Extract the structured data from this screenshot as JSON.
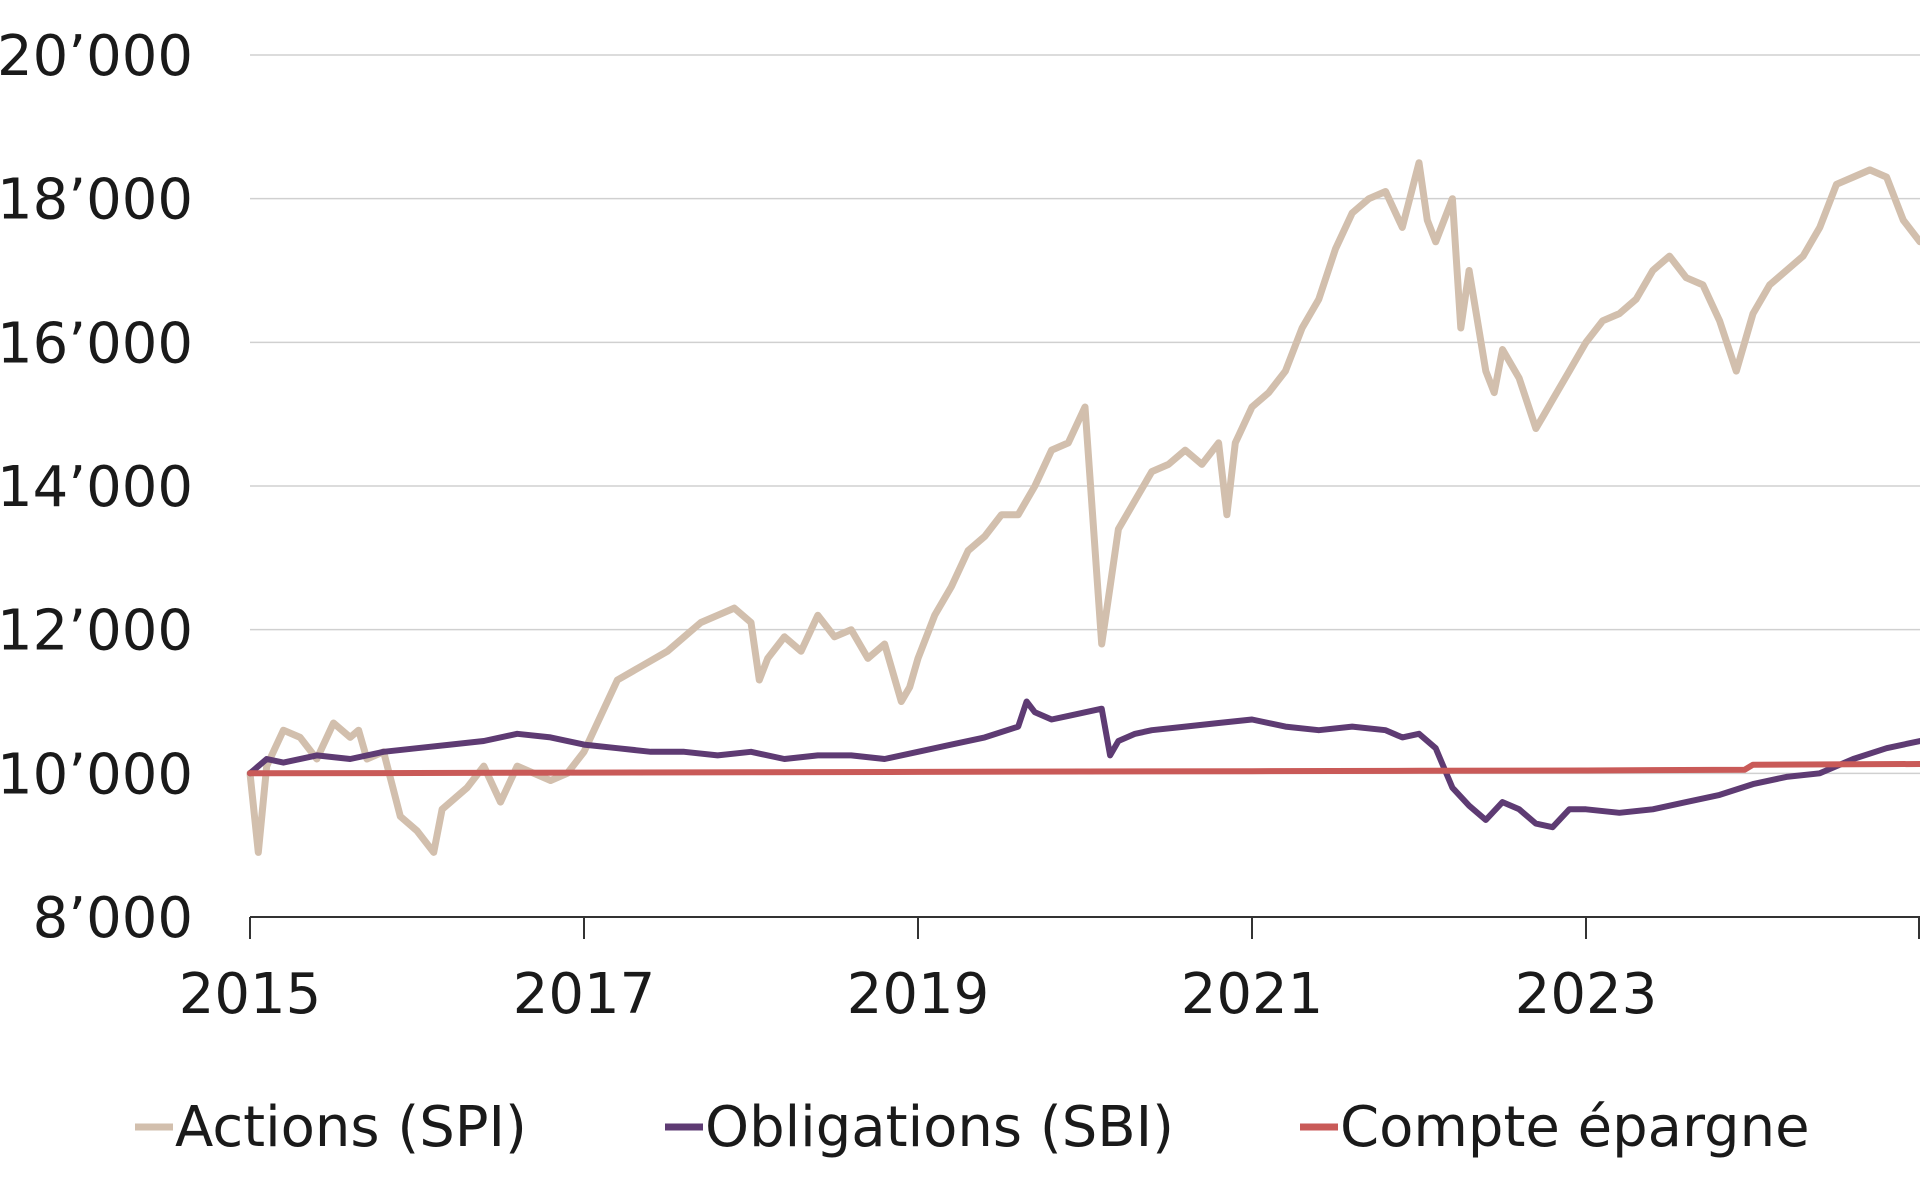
{
  "chart_data": {
    "type": "line",
    "title": "",
    "xlabel": "",
    "ylabel": "",
    "xlim": [
      2015,
      2025
    ],
    "ylim": [
      8000,
      20000
    ],
    "y_ticks": [
      {
        "value": 8000,
        "label": "8’000"
      },
      {
        "value": 10000,
        "label": "10’000"
      },
      {
        "value": 12000,
        "label": "12’000"
      },
      {
        "value": 14000,
        "label": "14’000"
      },
      {
        "value": 16000,
        "label": "16’000"
      },
      {
        "value": 18000,
        "label": "18’000"
      },
      {
        "value": 20000,
        "label": "20’000"
      }
    ],
    "x_ticks": [
      {
        "value": 2015,
        "label": "2015"
      },
      {
        "value": 2017,
        "label": "2017"
      },
      {
        "value": 2019,
        "label": "2019"
      },
      {
        "value": 2021,
        "label": "2021"
      },
      {
        "value": 2023,
        "label": "2023"
      }
    ],
    "grid": "horizontal",
    "legend_position": "bottom",
    "series": [
      {
        "name": "Actions (SPI)",
        "color": "#d2bfad",
        "x": [
          2015.0,
          2015.05,
          2015.1,
          2015.2,
          2015.3,
          2015.4,
          2015.5,
          2015.6,
          2015.65,
          2015.7,
          2015.8,
          2015.9,
          2016.0,
          2016.1,
          2016.15,
          2016.3,
          2016.4,
          2016.5,
          2016.6,
          2016.7,
          2016.8,
          2016.9,
          2017.0,
          2017.1,
          2017.2,
          2017.35,
          2017.5,
          2017.6,
          2017.7,
          2017.8,
          2017.9,
          2018.0,
          2018.05,
          2018.1,
          2018.2,
          2018.3,
          2018.4,
          2018.5,
          2018.6,
          2018.7,
          2018.8,
          2018.9,
          2018.95,
          2019.0,
          2019.1,
          2019.2,
          2019.3,
          2019.4,
          2019.5,
          2019.6,
          2019.7,
          2019.8,
          2019.9,
          2020.0,
          2020.1,
          2020.15,
          2020.2,
          2020.3,
          2020.4,
          2020.5,
          2020.6,
          2020.7,
          2020.8,
          2020.85,
          2020.9,
          2021.0,
          2021.1,
          2021.2,
          2021.3,
          2021.4,
          2021.5,
          2021.6,
          2021.7,
          2021.8,
          2021.9,
          2022.0,
          2022.05,
          2022.1,
          2022.2,
          2022.25,
          2022.3,
          2022.4,
          2022.45,
          2022.5,
          2022.6,
          2022.7,
          2022.75,
          2022.8,
          2022.9,
          2023.0,
          2023.1,
          2023.2,
          2023.3,
          2023.4,
          2023.5,
          2023.6,
          2023.7,
          2023.8,
          2023.9,
          2024.0,
          2024.1,
          2024.2,
          2024.3,
          2024.4,
          2024.5,
          2024.6,
          2024.7,
          2024.8,
          2024.9,
          2025.0
        ],
        "values": [
          10000,
          8900,
          10100,
          10600,
          10500,
          10200,
          10700,
          10500,
          10600,
          10200,
          10300,
          9400,
          9200,
          8900,
          9500,
          9800,
          10100,
          9600,
          10100,
          10000,
          9900,
          10000,
          10300,
          10800,
          11300,
          11500,
          11700,
          11900,
          12100,
          12200,
          12300,
          12100,
          11300,
          11600,
          11900,
          11700,
          12200,
          11900,
          12000,
          11600,
          11800,
          11000,
          11200,
          11600,
          12200,
          12600,
          13100,
          13300,
          13600,
          13600,
          14000,
          14500,
          14600,
          15100,
          11800,
          12600,
          13400,
          13800,
          14200,
          14300,
          14500,
          14300,
          14600,
          13600,
          14600,
          15100,
          15300,
          15600,
          16200,
          16600,
          17300,
          17800,
          18000,
          18100,
          17600,
          18500,
          17700,
          17400,
          18000,
          16200,
          17000,
          15600,
          15300,
          15900,
          15500,
          14800,
          15000,
          15200,
          15600,
          16000,
          16300,
          16400,
          16600,
          17000,
          17200,
          16900,
          16800,
          16300,
          15600,
          16400,
          16800,
          17000,
          17200,
          17600,
          18200,
          18300,
          18400,
          18300,
          17700,
          17400
        ]
      },
      {
        "name": "Obligations (SBI)",
        "color": "#5e3b73",
        "x": [
          2015.0,
          2015.1,
          2015.2,
          2015.4,
          2015.6,
          2015.8,
          2016.0,
          2016.2,
          2016.4,
          2016.6,
          2016.8,
          2017.0,
          2017.2,
          2017.4,
          2017.6,
          2017.8,
          2018.0,
          2018.2,
          2018.4,
          2018.6,
          2018.8,
          2019.0,
          2019.2,
          2019.4,
          2019.6,
          2019.65,
          2019.7,
          2019.8,
          2019.9,
          2020.0,
          2020.1,
          2020.15,
          2020.2,
          2020.3,
          2020.4,
          2020.6,
          2020.8,
          2021.0,
          2021.2,
          2021.4,
          2021.6,
          2021.8,
          2021.9,
          2022.0,
          2022.1,
          2022.2,
          2022.3,
          2022.4,
          2022.5,
          2022.6,
          2022.7,
          2022.8,
          2022.9,
          2023.0,
          2023.2,
          2023.4,
          2023.6,
          2023.8,
          2024.0,
          2024.2,
          2024.4,
          2024.6,
          2024.8,
          2025.0
        ],
        "values": [
          10000,
          10200,
          10150,
          10250,
          10200,
          10300,
          10350,
          10400,
          10450,
          10550,
          10500,
          10400,
          10350,
          10300,
          10300,
          10250,
          10300,
          10200,
          10250,
          10250,
          10200,
          10300,
          10400,
          10500,
          10650,
          11000,
          10850,
          10750,
          10800,
          10850,
          10900,
          10250,
          10450,
          10550,
          10600,
          10650,
          10700,
          10750,
          10650,
          10600,
          10650,
          10600,
          10500,
          10550,
          10350,
          9800,
          9550,
          9350,
          9600,
          9500,
          9300,
          9250,
          9500,
          9500,
          9450,
          9500,
          9600,
          9700,
          9850,
          9950,
          10000,
          10200,
          10350,
          10450
        ]
      },
      {
        "name": "Compte épargne",
        "color": "#c95a58",
        "x": [
          2015.0,
          2016.0,
          2017.0,
          2018.0,
          2019.0,
          2020.0,
          2021.0,
          2022.0,
          2023.0,
          2023.95,
          2024.0,
          2025.0
        ],
        "values": [
          10000,
          10005,
          10010,
          10015,
          10020,
          10025,
          10030,
          10035,
          10040,
          10050,
          10120,
          10130
        ]
      }
    ]
  }
}
